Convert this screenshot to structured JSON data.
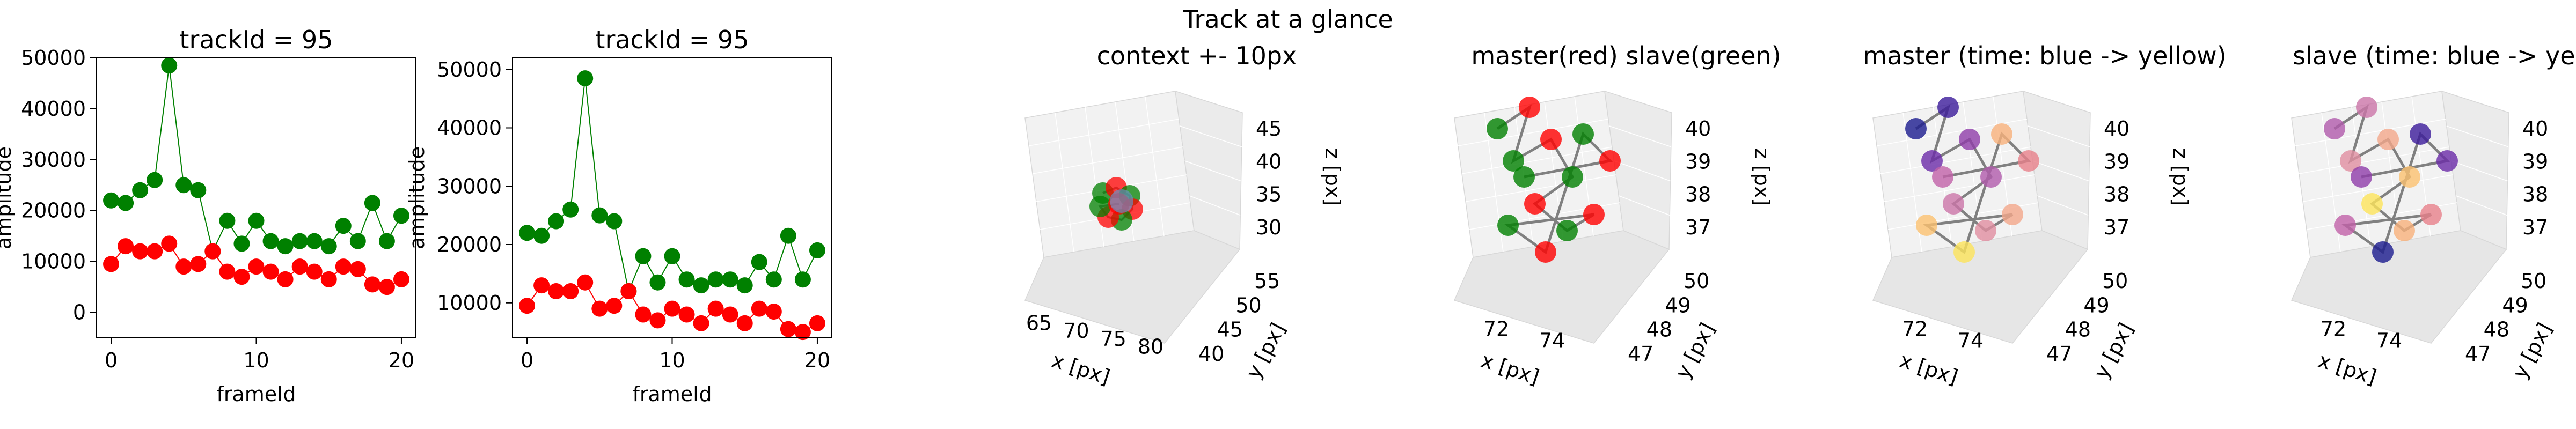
{
  "figure": {
    "suptitle": "Track at a glance"
  },
  "colors": {
    "master": "#ff0000",
    "slave": "#008000",
    "line": "#808080",
    "master_line": "#ff0000",
    "slave_line": "#008000"
  },
  "chart_data": [
    {
      "type": "line",
      "title": "trackId = 95",
      "xlabel": "frameId",
      "ylabel": "amplitude",
      "xlim": [
        -1,
        21
      ],
      "ylim": [
        -5000,
        50000
      ],
      "xticks": [
        0,
        10,
        20
      ],
      "yticks": [
        0,
        10000,
        20000,
        30000,
        40000,
        50000
      ],
      "x": [
        0,
        1,
        2,
        3,
        4,
        5,
        6,
        7,
        8,
        9,
        10,
        11,
        12,
        13,
        14,
        15,
        16,
        17,
        18,
        19,
        20
      ],
      "series": [
        {
          "values": [
            22000,
            21500,
            24000,
            26000,
            48500,
            25000,
            24000,
            12000,
            18000,
            13500,
            18000,
            14000,
            13000,
            14000,
            14000,
            13000,
            17000,
            14000,
            21500,
            14000,
            19000
          ]
        },
        {
          "values": [
            9500,
            13000,
            12000,
            12000,
            13500,
            9000,
            9500,
            12000,
            8000,
            7000,
            9000,
            8000,
            6500,
            9000,
            8000,
            6500,
            9000,
            8500,
            5500,
            5000,
            6500
          ]
        }
      ]
    },
    {
      "type": "line",
      "title": "trackId = 95",
      "xlabel": "frameId",
      "ylabel": "amplitude",
      "xlim": [
        -1,
        21
      ],
      "ylim": [
        4000,
        52000
      ],
      "xticks": [
        0,
        10,
        20
      ],
      "yticks": [
        10000,
        20000,
        30000,
        40000,
        50000
      ],
      "x": [
        0,
        1,
        2,
        3,
        4,
        5,
        6,
        7,
        8,
        9,
        10,
        11,
        12,
        13,
        14,
        15,
        16,
        17,
        18,
        19,
        20
      ],
      "series": [
        {
          "values": [
            22000,
            21500,
            24000,
            26000,
            48500,
            25000,
            24000,
            12000,
            18000,
            13500,
            18000,
            14000,
            13000,
            14000,
            14000,
            13000,
            17000,
            14000,
            21500,
            14000,
            19000
          ]
        },
        {
          "values": [
            9500,
            13000,
            12000,
            12000,
            13500,
            9000,
            9500,
            12000,
            8000,
            7000,
            9000,
            8000,
            6500,
            9000,
            8000,
            6500,
            9000,
            8500,
            5500,
            5000,
            6500
          ]
        }
      ]
    },
    {
      "type": "scatter",
      "title": "context +- 10px",
      "xlabel": "x [px]",
      "ylabel": "y [px]",
      "zlabel": "z [px]",
      "xticks": [
        "65",
        "70",
        "75",
        "80"
      ],
      "yticks": [
        "40",
        "45",
        "50",
        "55"
      ],
      "zticks": [
        "30",
        "35",
        "40",
        "45"
      ]
    },
    {
      "type": "scatter",
      "title": "master(red) slave(green)",
      "xlabel": "x [px]",
      "ylabel": "y [px]",
      "zlabel": "z [px]",
      "xticks": [
        "72",
        "74"
      ],
      "yticks": [
        "47",
        "48",
        "49",
        "50"
      ],
      "zticks": [
        "37",
        "38",
        "39",
        "40"
      ]
    },
    {
      "type": "scatter",
      "title": "master (time: blue -> yellow)",
      "xlabel": "x [px]",
      "ylabel": "y [px]",
      "zlabel": "z [px]",
      "xticks": [
        "72",
        "74"
      ],
      "yticks": [
        "47",
        "48",
        "49",
        "50"
      ],
      "zticks": [
        "37",
        "38",
        "39",
        "40"
      ]
    },
    {
      "type": "scatter",
      "title": "slave (time: blue -> yellow)",
      "xlabel": "x [px]",
      "ylabel": "y [px]",
      "zlabel": "z [px]",
      "xticks": [
        "72",
        "74"
      ],
      "yticks": [
        "47",
        "48",
        "49",
        "50"
      ],
      "zticks": [
        "37",
        "38",
        "39",
        "40"
      ]
    }
  ]
}
